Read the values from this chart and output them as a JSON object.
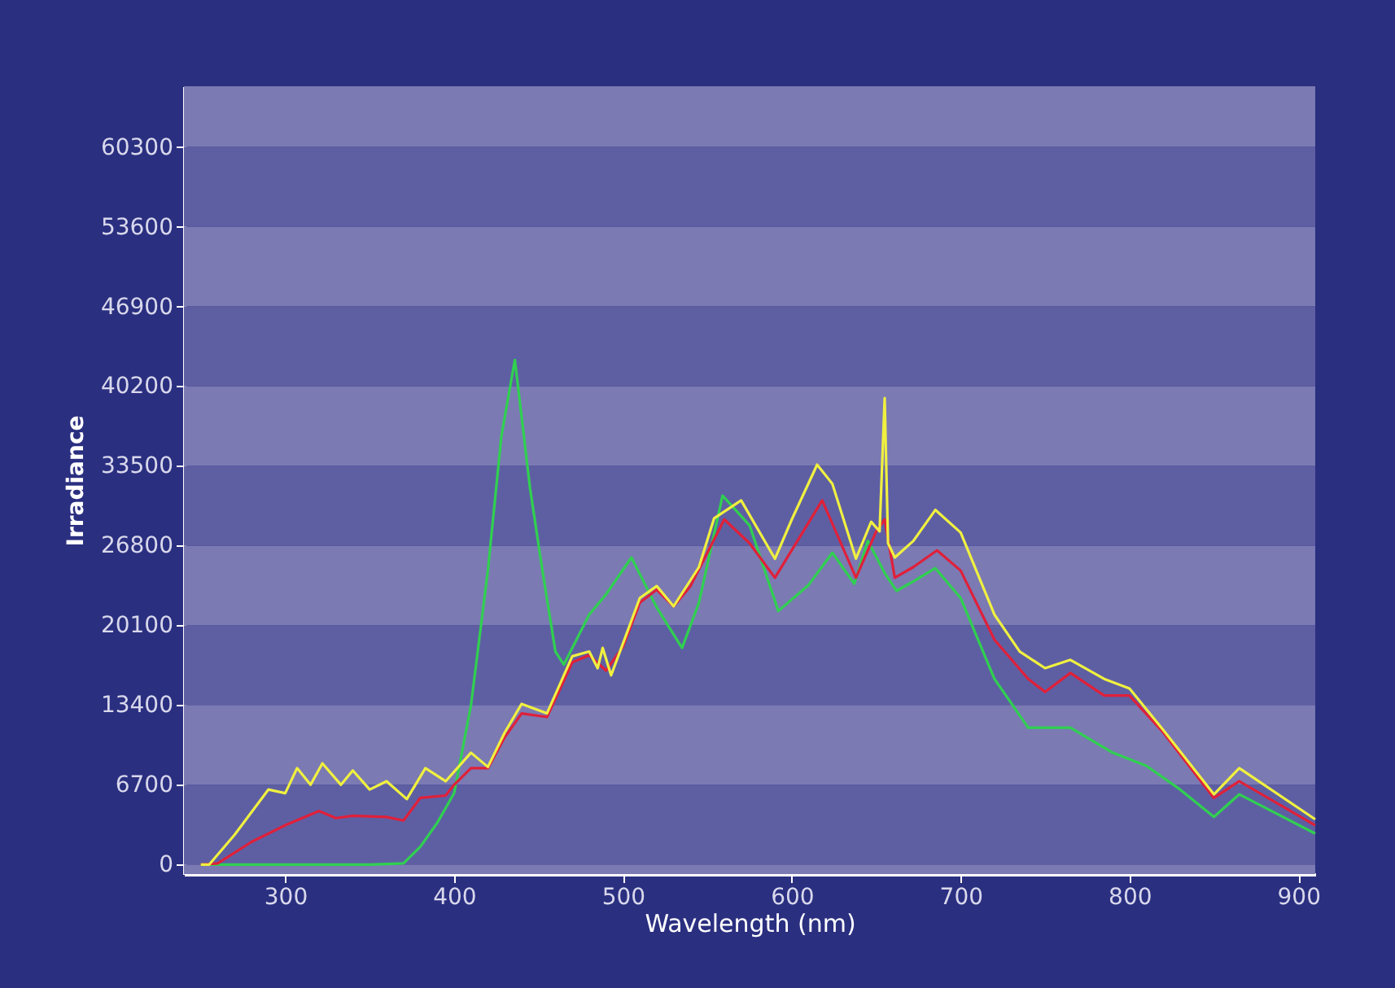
{
  "chart_data": {
    "type": "line",
    "xlabel": "Wavelength (nm)",
    "ylabel": "Irradiance",
    "xlim": [
      240,
      910
    ],
    "ylim": [
      -800,
      65400
    ],
    "xticks": [
      300,
      400,
      500,
      600,
      700,
      800,
      900
    ],
    "yticks": [
      0,
      6700,
      13400,
      20100,
      26800,
      33500,
      40200,
      46900,
      53600,
      60300
    ],
    "marker": "none",
    "line_style": "solid",
    "bands": [
      {
        "axis": "y",
        "from": -800,
        "to": 0,
        "color": "#7b7ab3"
      },
      {
        "axis": "y",
        "from": 6700,
        "to": 13400,
        "color": "#7b7ab3"
      },
      {
        "axis": "y",
        "from": 20100,
        "to": 26800,
        "color": "#7b7ab3"
      },
      {
        "axis": "y",
        "from": 33500,
        "to": 40200,
        "color": "#7b7ab3"
      },
      {
        "axis": "y",
        "from": 46900,
        "to": 53600,
        "color": "#7b7ab3"
      },
      {
        "axis": "y",
        "from": 60300,
        "to": 65400,
        "color": "#7b7ab3"
      },
      {
        "axis": "y",
        "from": 0,
        "to": 6700,
        "color": "#5e5fa3"
      },
      {
        "axis": "y",
        "from": 13400,
        "to": 20100,
        "color": "#5e5fa3"
      },
      {
        "axis": "y",
        "from": 26800,
        "to": 33500,
        "color": "#5e5fa3"
      },
      {
        "axis": "y",
        "from": 40200,
        "to": 46900,
        "color": "#5e5fa3"
      },
      {
        "axis": "y",
        "from": 53600,
        "to": 60300,
        "color": "#5e5fa3"
      }
    ],
    "series": [
      {
        "color": "#30d050",
        "x": [
          250,
          300,
          350,
          370,
          380,
          390,
          400,
          410,
          420,
          428,
          436,
          445,
          452,
          460,
          465,
          480,
          490,
          505,
          520,
          535,
          545,
          559,
          575,
          592,
          610,
          624,
          637,
          645,
          655,
          662,
          672,
          685,
          700,
          720,
          740,
          765,
          790,
          810,
          830,
          850,
          865,
          880,
          910
        ],
        "values": [
          0,
          0,
          0,
          100,
          1500,
          3500,
          6000,
          13400,
          24700,
          36000,
          42400,
          31600,
          25000,
          17900,
          16800,
          21000,
          22700,
          25800,
          21600,
          18200,
          22000,
          31000,
          28500,
          21300,
          23500,
          26200,
          23600,
          27200,
          24500,
          23000,
          23800,
          24900,
          22400,
          15600,
          11500,
          11500,
          9400,
          8300,
          6300,
          4000,
          5900,
          4800,
          2600
        ]
      },
      {
        "color": "#e0203a",
        "x": [
          250,
          260,
          280,
          300,
          320,
          330,
          340,
          360,
          370,
          380,
          395,
          400,
          410,
          420,
          430,
          440,
          455,
          470,
          480,
          490,
          500,
          510,
          520,
          530,
          540,
          560,
          575,
          590,
          618,
          638,
          650,
          655,
          661,
          672,
          686,
          700,
          720,
          740,
          750,
          765,
          785,
          800,
          820,
          850,
          865,
          910
        ],
        "values": [
          0,
          100,
          1900,
          3300,
          4500,
          3900,
          4100,
          4000,
          3700,
          5600,
          5800,
          6700,
          8100,
          8100,
          10700,
          12700,
          12400,
          17000,
          17600,
          16300,
          18300,
          22000,
          23100,
          21700,
          23400,
          29000,
          27000,
          24100,
          30600,
          24100,
          28000,
          29000,
          24100,
          25000,
          26400,
          24700,
          18900,
          15600,
          14500,
          16100,
          14200,
          14200,
          11100,
          5600,
          7000,
          3300
        ]
      },
      {
        "color": "#f0f040",
        "x": [
          250,
          255,
          270,
          290,
          300,
          307,
          315,
          322,
          333,
          340,
          350,
          360,
          372,
          383,
          395,
          410,
          420,
          430,
          440,
          455,
          470,
          480,
          485,
          488,
          493,
          510,
          520,
          530,
          545,
          554,
          570,
          590,
          600,
          615,
          624,
          638,
          647,
          652,
          655,
          657,
          661,
          672,
          685,
          700,
          720,
          735,
          750,
          765,
          785,
          800,
          820,
          850,
          865,
          910
        ],
        "values": [
          0,
          0,
          2500,
          6300,
          6000,
          8100,
          6700,
          8500,
          6700,
          7900,
          6300,
          7000,
          5500,
          8100,
          7000,
          9400,
          8200,
          11100,
          13500,
          12700,
          17500,
          17900,
          16500,
          18200,
          15900,
          22400,
          23400,
          21700,
          25000,
          29100,
          30600,
          25700,
          29000,
          33600,
          32000,
          25700,
          28800,
          28000,
          39200,
          27000,
          25800,
          27200,
          29800,
          27900,
          21000,
          17900,
          16500,
          17200,
          15600,
          14800,
          11300,
          5900,
          8100,
          3800
        ]
      }
    ]
  }
}
